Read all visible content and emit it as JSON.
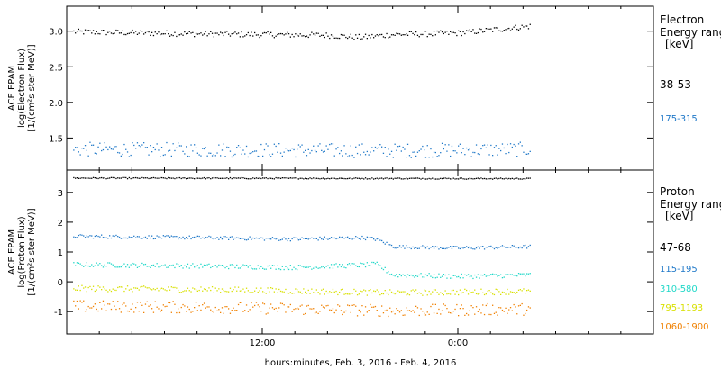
{
  "xaxis": {
    "title": "hours:minutes, Feb.  3, 2016 - Feb.  4, 2016",
    "ticks": [
      {
        "hours": 12,
        "label": "12:00"
      },
      {
        "hours": 24,
        "label": "0:00"
      }
    ],
    "range_hours": [
      0,
      36
    ],
    "data_end_hours": 28.5
  },
  "chart_data": [
    {
      "type": "scatter",
      "panel": "electron",
      "ylabel_lines": [
        "ACE EPAM",
        "log(Electron Flux)",
        "[1/(cm²s ster MeV)]"
      ],
      "legend_title_lines": [
        "Electron",
        "Energy range",
        "[keV]"
      ],
      "ylim": [
        1.05,
        3.35
      ],
      "yticks": [
        {
          "value": 1.5,
          "label": "1.5"
        },
        {
          "value": 2.0,
          "label": "2.0"
        },
        {
          "value": 2.5,
          "label": "2.5"
        },
        {
          "value": 3.0,
          "label": "3.0"
        }
      ],
      "series": [
        {
          "name": "38-53",
          "color": "#000000",
          "keyframes": [
            [
              0,
              3.0
            ],
            [
              8,
              2.97
            ],
            [
              16,
              2.95
            ],
            [
              18,
              2.92
            ],
            [
              20,
              2.96
            ],
            [
              24,
              2.98
            ],
            [
              28.5,
              3.08
            ]
          ],
          "noise": 0.04
        },
        {
          "name": "175-315",
          "color": "#1f78c8",
          "keyframes": [
            [
              0,
              1.35
            ],
            [
              10,
              1.34
            ],
            [
              20,
              1.33
            ],
            [
              28.5,
              1.35
            ]
          ],
          "noise": 0.1
        }
      ]
    },
    {
      "type": "scatter",
      "panel": "proton",
      "ylabel_lines": [
        "ACE EPAM",
        "log(Proton Flux)",
        "[1/(cm²s ster MeV)]"
      ],
      "legend_title_lines": [
        "Proton",
        "Energy range",
        "[keV]"
      ],
      "ylim": [
        -1.75,
        3.75
      ],
      "yticks": [
        {
          "value": -1,
          "label": "-1"
        },
        {
          "value": 0,
          "label": "0"
        },
        {
          "value": 1,
          "label": "1"
        },
        {
          "value": 2,
          "label": "2"
        },
        {
          "value": 3,
          "label": "3"
        }
      ],
      "series": [
        {
          "name": "47-68",
          "color": "#000000",
          "keyframes": [
            [
              0,
              3.5
            ],
            [
              28.5,
              3.48
            ]
          ],
          "noise": 0.02
        },
        {
          "name": "115-195",
          "color": "#1f78c8",
          "keyframes": [
            [
              0,
              1.55
            ],
            [
              8,
              1.5
            ],
            [
              14,
              1.45
            ],
            [
              18,
              1.5
            ],
            [
              19,
              1.45
            ],
            [
              20,
              1.2
            ],
            [
              24,
              1.15
            ],
            [
              28.5,
              1.2
            ]
          ],
          "noise": 0.06
        },
        {
          "name": "310-580",
          "color": "#20d8c8",
          "keyframes": [
            [
              0,
              0.6
            ],
            [
              8,
              0.55
            ],
            [
              14,
              0.5
            ],
            [
              19,
              0.6
            ],
            [
              20,
              0.25
            ],
            [
              24,
              0.2
            ],
            [
              28.5,
              0.25
            ]
          ],
          "noise": 0.08
        },
        {
          "name": "795-1193",
          "color": "#d8e000",
          "keyframes": [
            [
              0,
              -0.2
            ],
            [
              10,
              -0.25
            ],
            [
              20,
              -0.35
            ],
            [
              28.5,
              -0.3
            ]
          ],
          "noise": 0.1
        },
        {
          "name": "1060-1900",
          "color": "#f08000",
          "keyframes": [
            [
              0,
              -0.8
            ],
            [
              10,
              -0.85
            ],
            [
              20,
              -0.95
            ],
            [
              28.5,
              -0.9
            ]
          ],
          "noise": 0.2
        }
      ]
    }
  ]
}
